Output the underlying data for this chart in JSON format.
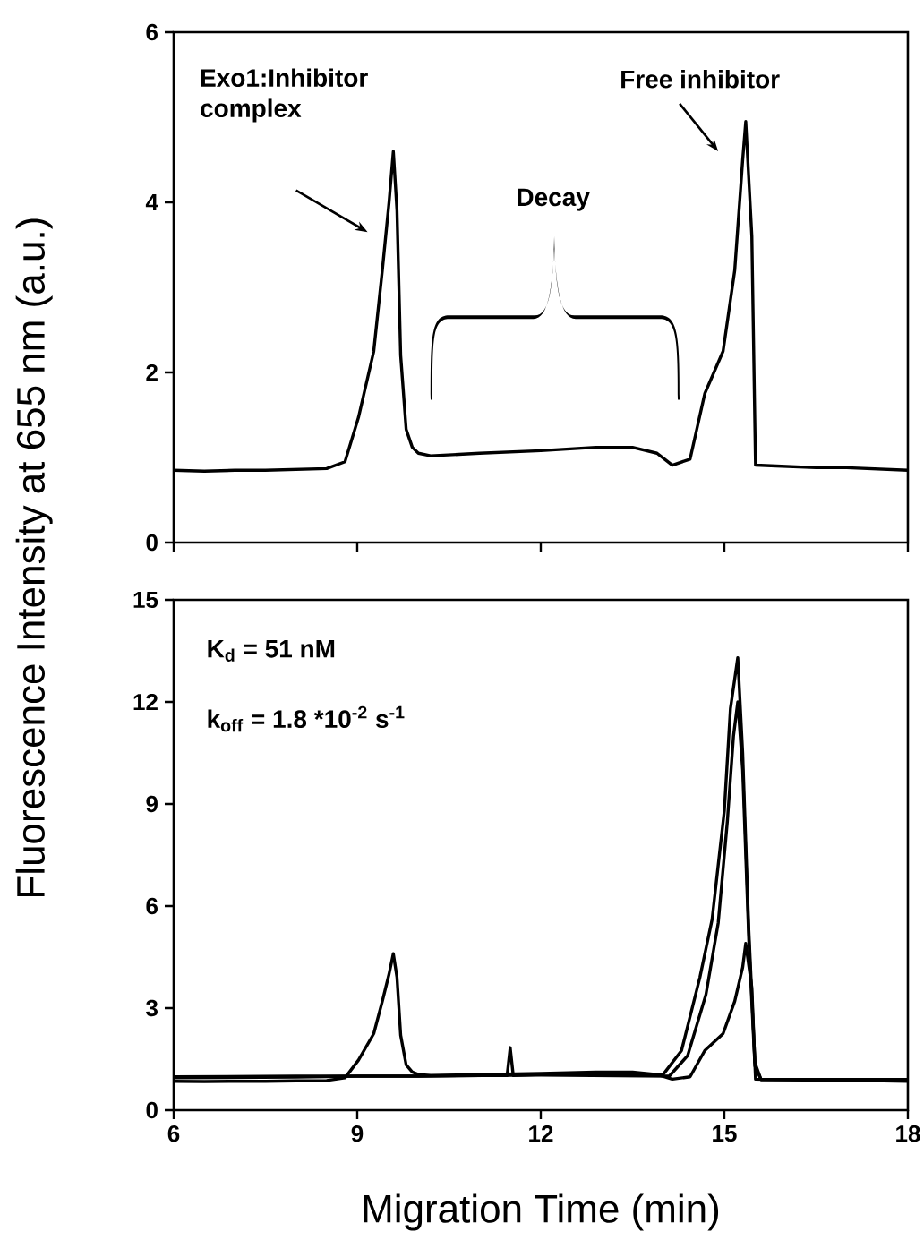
{
  "chart_data": [
    {
      "type": "line",
      "ylabel": "Fluorescence Intensity at 655 nm (a.u.)",
      "xlim": [
        6,
        18
      ],
      "ylim": [
        0,
        6
      ],
      "xticks": [
        6,
        9,
        12,
        15,
        18
      ],
      "yticks": [
        0,
        2,
        4,
        6
      ],
      "tick_labels": "y",
      "annotations": [
        "Exo1:Inhibitor complex",
        "Decay",
        "Free inhibitor"
      ],
      "series": [
        {
          "color": "#000000",
          "x": [
            6,
            6.5,
            7,
            7.5,
            8,
            8.5,
            8.8,
            9.02,
            9.27,
            9.41,
            9.52,
            9.59,
            9.65,
            9.71,
            9.8,
            9.9,
            10.0,
            10.2,
            11,
            12,
            12.9,
            13.5,
            13.9,
            14.15,
            14.44,
            14.68,
            14.98,
            15.17,
            15.3,
            15.35,
            15.45,
            15.51,
            15.85,
            16.5,
            17,
            18
          ],
          "values": [
            0.85,
            0.84,
            0.85,
            0.85,
            0.86,
            0.87,
            0.95,
            1.47,
            2.25,
            3.2,
            4.0,
            4.6,
            3.9,
            2.2,
            1.33,
            1.12,
            1.05,
            1.02,
            1.05,
            1.08,
            1.12,
            1.12,
            1.05,
            0.91,
            0.98,
            1.75,
            2.25,
            3.2,
            4.5,
            4.95,
            3.6,
            0.91,
            0.9,
            0.88,
            0.88,
            0.85
          ]
        }
      ]
    },
    {
      "type": "line",
      "xlabel": "Migration Time (min)",
      "xlim": [
        6,
        18
      ],
      "ylim": [
        0,
        15
      ],
      "xticks": [
        6,
        9,
        12,
        15,
        18
      ],
      "yticks": [
        0,
        3,
        6,
        9,
        12,
        15
      ],
      "annotations": [
        "K$_{d}$ = 51 nM",
        "k$_{off}$ = 1.8 *10$^{-2}$ s$^{-1}$"
      ],
      "series": [
        {
          "color": "#000000",
          "x": [
            6,
            6.5,
            7,
            7.5,
            8,
            8.5,
            8.8,
            9.02,
            9.27,
            9.41,
            9.52,
            9.59,
            9.65,
            9.71,
            9.8,
            9.9,
            10.0,
            10.2,
            11,
            12,
            12.9,
            13.5,
            13.9,
            14.15,
            14.44,
            14.68,
            14.98,
            15.17,
            15.3,
            15.35,
            15.45,
            15.51,
            15.85,
            16.5,
            17,
            18
          ],
          "values": [
            0.85,
            0.84,
            0.85,
            0.85,
            0.86,
            0.87,
            0.95,
            1.47,
            2.25,
            3.2,
            4.0,
            4.6,
            3.9,
            2.2,
            1.33,
            1.12,
            1.05,
            1.02,
            1.05,
            1.08,
            1.12,
            1.12,
            1.05,
            0.91,
            0.98,
            1.75,
            2.25,
            3.2,
            4.2,
            4.9,
            3.6,
            0.91,
            0.9,
            0.88,
            0.88,
            0.85
          ]
        },
        {
          "color": "#000000",
          "x": [
            6,
            8,
            9,
            10,
            11,
            11.45,
            11.5,
            11.55,
            12,
            13,
            14,
            14.3,
            14.6,
            14.8,
            15.0,
            15.1,
            15.22,
            15.3,
            15.4,
            15.5,
            15.6,
            16.5,
            18
          ],
          "values": [
            0.95,
            0.97,
            1.0,
            1.0,
            1.02,
            1.02,
            1.84,
            1.02,
            1.05,
            1.05,
            1.05,
            1.75,
            3.9,
            5.6,
            8.8,
            11.8,
            13.3,
            10.5,
            5.3,
            1.4,
            0.9,
            0.9,
            0.9
          ]
        },
        {
          "color": "#000000",
          "x": [
            6,
            8,
            10,
            12,
            14.1,
            14.4,
            14.7,
            14.9,
            15.05,
            15.15,
            15.22,
            15.3,
            15.4,
            15.5,
            15.6,
            18
          ],
          "values": [
            0.98,
            1.0,
            1.0,
            1.03,
            1.0,
            1.6,
            3.4,
            5.5,
            8.5,
            11.0,
            12.0,
            10.0,
            5.0,
            1.3,
            0.9,
            0.9
          ]
        }
      ]
    }
  ]
}
